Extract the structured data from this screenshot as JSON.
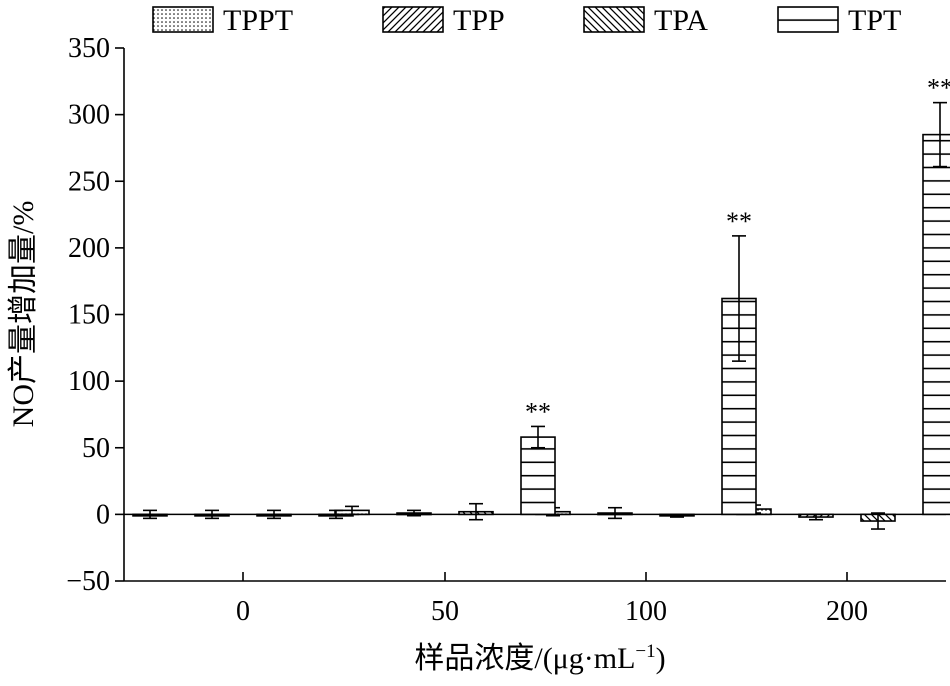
{
  "chart_data": {
    "type": "bar",
    "title": "",
    "xlabel": "样品浓度/(μg·mL",
    "xlabel_sup": "−1",
    "xlabel_close": ")",
    "ylabel": "NO产量增加量/%",
    "categories": [
      "0",
      "50",
      "100",
      "200"
    ],
    "ylim": [
      -50,
      350
    ],
    "yticks": [
      -50,
      0,
      50,
      100,
      150,
      200,
      250,
      300,
      350
    ],
    "ytick_labels": [
      "−50",
      "0",
      "50",
      "100",
      "150",
      "200",
      "250",
      "300",
      "350"
    ],
    "legend_position": "top",
    "series": [
      {
        "name": "TPPT",
        "pattern": "dots",
        "values": [
          0,
          3,
          2,
          4
        ],
        "errors": [
          3,
          3,
          3,
          3
        ],
        "annotations": [
          "",
          "",
          "",
          ""
        ]
      },
      {
        "name": "TPP",
        "pattern": "diagonal-up",
        "values": [
          0,
          1,
          1,
          -2
        ],
        "errors": [
          3,
          2,
          4,
          2
        ],
        "annotations": [
          "",
          "",
          "",
          ""
        ]
      },
      {
        "name": "TPA",
        "pattern": "diagonal-down",
        "values": [
          0,
          2,
          -1,
          -5
        ],
        "errors": [
          3,
          6,
          1,
          6
        ],
        "annotations": [
          "",
          "",
          "",
          ""
        ]
      },
      {
        "name": "TPT",
        "pattern": "horizontal",
        "values": [
          0,
          58,
          162,
          285
        ],
        "errors": [
          3,
          8,
          47,
          24
        ],
        "annotations": [
          "",
          "**",
          "**",
          "**"
        ]
      }
    ]
  }
}
